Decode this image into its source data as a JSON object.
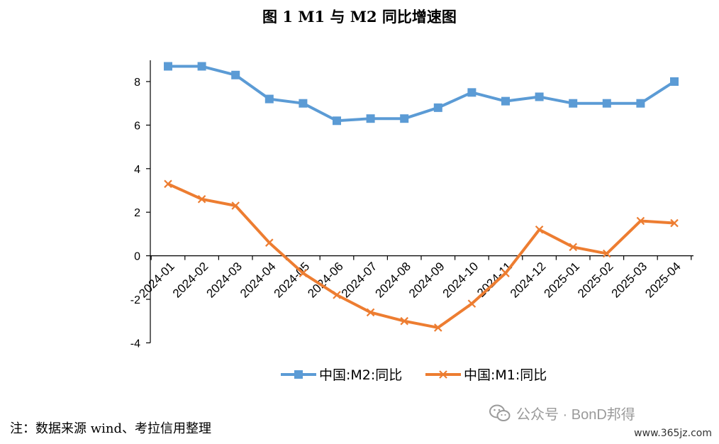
{
  "chart_data": {
    "type": "line",
    "title": "图 1 M1 与 M2 同比增速图",
    "x": [
      "2024-01",
      "2024-02",
      "2024-03",
      "2024-04",
      "2024-05",
      "2024-06",
      "2024-07",
      "2024-08",
      "2024-09",
      "2024-10",
      "2024-11",
      "2024-12",
      "2025-01",
      "2025-02",
      "2025-03",
      "2025-04"
    ],
    "ylim": [
      -4,
      8
    ],
    "yticks": [
      -4,
      -2,
      0,
      2,
      4,
      6,
      8
    ],
    "grid": false,
    "legend_position": "bottom",
    "series": [
      {
        "name": "中国:M2:同比",
        "color": "#5b9bd5",
        "marker": "square",
        "values": [
          8.7,
          8.7,
          8.3,
          7.2,
          7.0,
          6.2,
          6.3,
          6.3,
          6.8,
          7.5,
          7.1,
          7.3,
          7.0,
          7.0,
          7.0,
          8.0
        ]
      },
      {
        "name": "中国:M1:同比",
        "color": "#ed7d31",
        "marker": "x",
        "values": [
          3.3,
          2.6,
          2.3,
          0.6,
          -0.8,
          -1.8,
          -2.6,
          -3.0,
          -3.3,
          -2.2,
          -0.8,
          1.2,
          0.4,
          0.1,
          1.6,
          1.5
        ]
      }
    ]
  },
  "note": "注：数据来源 wind、考拉信用整理",
  "watermark": {
    "icon": "wechat-icon",
    "text": "公众号 · BonD邦得"
  },
  "site": "www.365jz.com"
}
